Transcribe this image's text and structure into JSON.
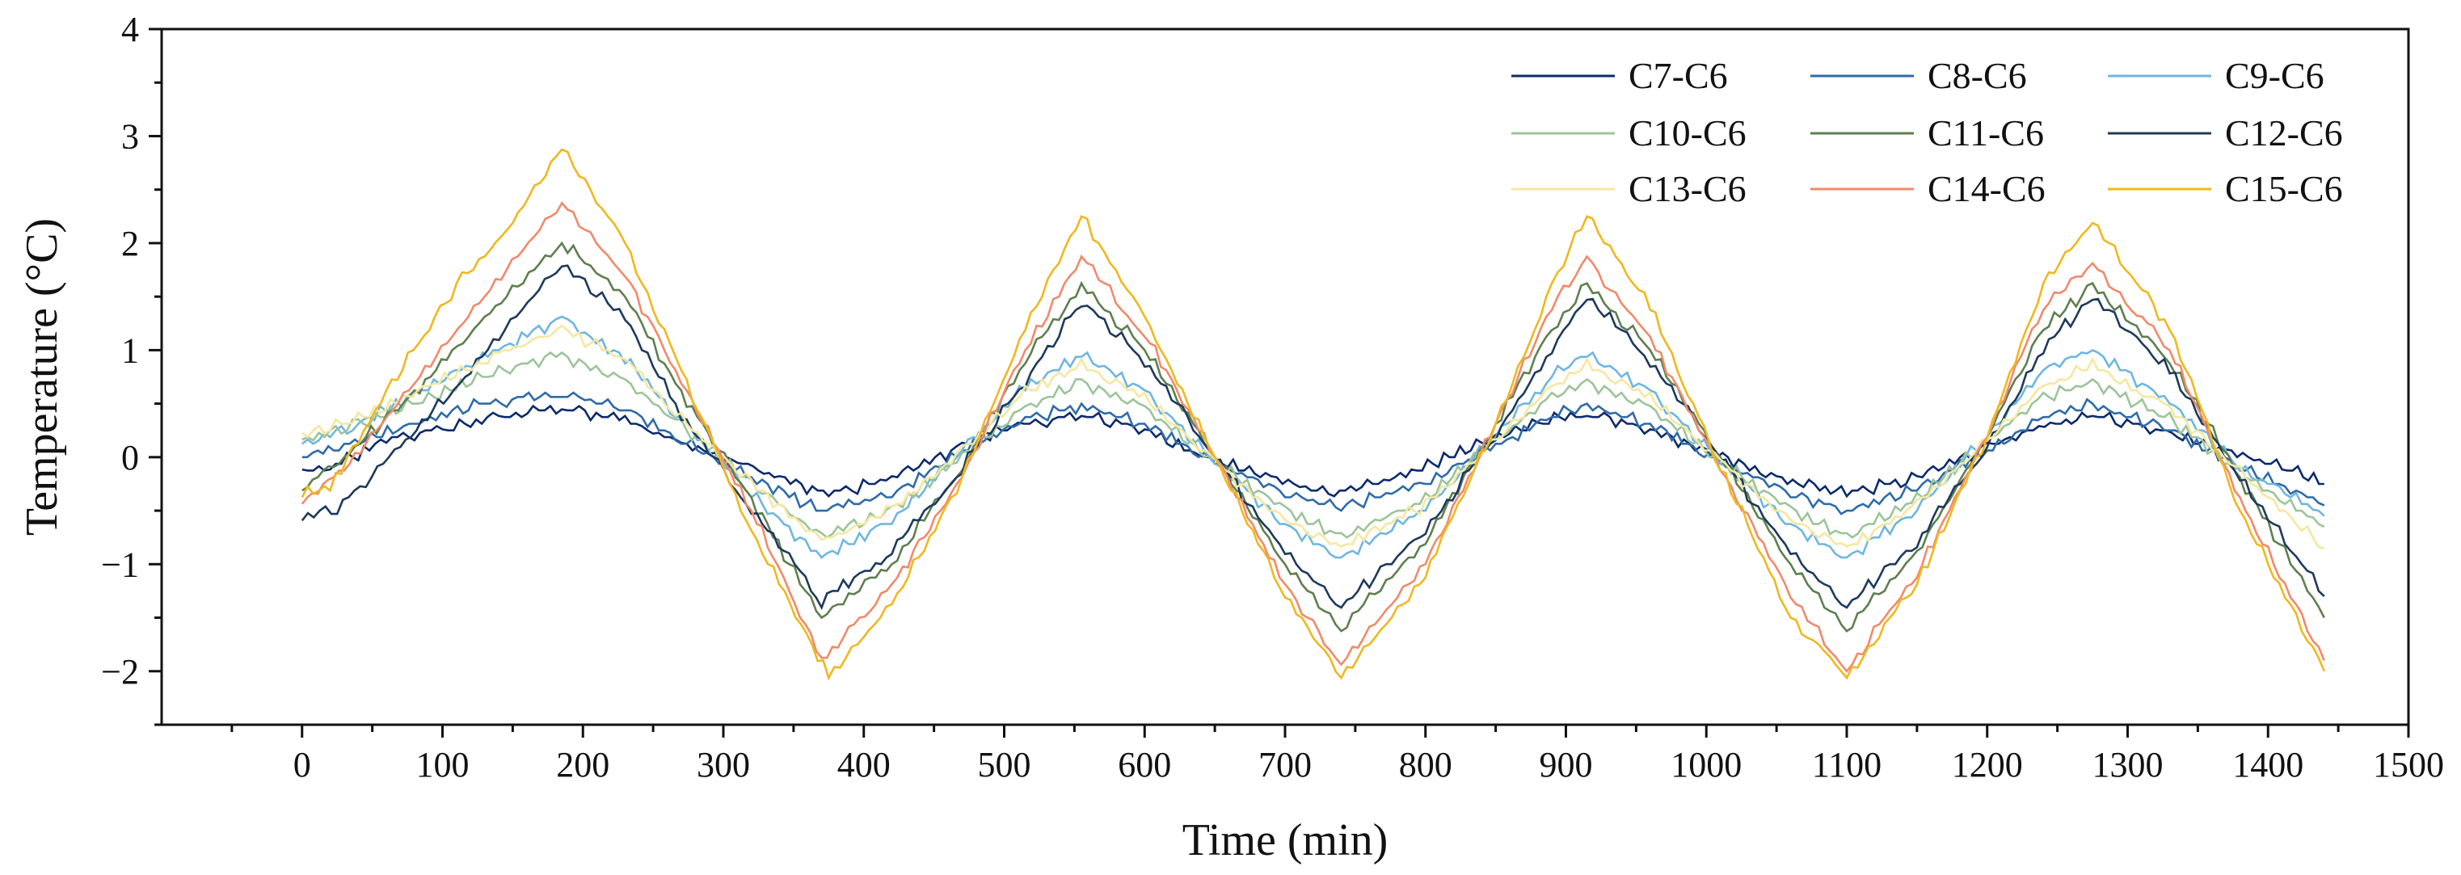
{
  "chart_data": {
    "type": "line",
    "title": "",
    "xlabel": "Time (min)",
    "ylabel": "Temperature (°C)",
    "xlim": [
      -100,
      1500
    ],
    "ylim": [
      -2.5,
      4
    ],
    "xticks": [
      0,
      100,
      200,
      300,
      400,
      500,
      600,
      700,
      800,
      900,
      1000,
      1100,
      1200,
      1300,
      1400,
      1500
    ],
    "yticks": [
      -2,
      -1,
      0,
      1,
      2,
      3,
      4
    ],
    "ytick_labels": [
      "−2",
      "−1",
      "0",
      "1",
      "2",
      "3",
      "4"
    ],
    "grid": false,
    "legend_position": "top-right",
    "series": [
      {
        "name": "C7-C6",
        "color": "#0c2a6b",
        "points": [
          [
            0,
            -0.15
          ],
          [
            20,
            -0.1
          ],
          [
            60,
            0.15
          ],
          [
            100,
            0.25
          ],
          [
            140,
            0.38
          ],
          [
            185,
            0.45
          ],
          [
            230,
            0.35
          ],
          [
            270,
            0.12
          ],
          [
            310,
            -0.05
          ],
          [
            340,
            -0.2
          ],
          [
            375,
            -0.35
          ],
          [
            420,
            -0.2
          ],
          [
            470,
            0.1
          ],
          [
            510,
            0.3
          ],
          [
            555,
            0.38
          ],
          [
            600,
            0.25
          ],
          [
            640,
            0.0
          ],
          [
            690,
            -0.2
          ],
          [
            735,
            -0.35
          ],
          [
            790,
            -0.15
          ],
          [
            840,
            0.12
          ],
          [
            880,
            0.32
          ],
          [
            915,
            0.4
          ],
          [
            960,
            0.25
          ],
          [
            1000,
            0.05
          ],
          [
            1050,
            -0.2
          ],
          [
            1100,
            -0.35
          ],
          [
            1150,
            -0.2
          ],
          [
            1200,
            0.1
          ],
          [
            1245,
            0.3
          ],
          [
            1275,
            0.38
          ],
          [
            1320,
            0.25
          ],
          [
            1370,
            0.05
          ],
          [
            1410,
            -0.1
          ],
          [
            1440,
            -0.25
          ]
        ]
      },
      {
        "name": "C8-C6",
        "color": "#2f6ba8",
        "points": [
          [
            0,
            0.0
          ],
          [
            30,
            0.1
          ],
          [
            80,
            0.3
          ],
          [
            130,
            0.5
          ],
          [
            185,
            0.58
          ],
          [
            230,
            0.45
          ],
          [
            270,
            0.15
          ],
          [
            320,
            -0.2
          ],
          [
            370,
            -0.5
          ],
          [
            420,
            -0.35
          ],
          [
            470,
            0.05
          ],
          [
            515,
            0.35
          ],
          [
            555,
            0.48
          ],
          [
            600,
            0.3
          ],
          [
            650,
            -0.05
          ],
          [
            700,
            -0.35
          ],
          [
            740,
            -0.48
          ],
          [
            800,
            -0.25
          ],
          [
            850,
            0.1
          ],
          [
            890,
            0.38
          ],
          [
            915,
            0.48
          ],
          [
            960,
            0.3
          ],
          [
            1010,
            -0.05
          ],
          [
            1060,
            -0.35
          ],
          [
            1100,
            -0.5
          ],
          [
            1150,
            -0.3
          ],
          [
            1200,
            0.05
          ],
          [
            1240,
            0.38
          ],
          [
            1275,
            0.48
          ],
          [
            1330,
            0.25
          ],
          [
            1380,
            -0.1
          ],
          [
            1440,
            -0.45
          ]
        ]
      },
      {
        "name": "C9-C6",
        "color": "#6fb6e0",
        "points": [
          [
            0,
            0.1
          ],
          [
            40,
            0.3
          ],
          [
            90,
            0.65
          ],
          [
            140,
            1.0
          ],
          [
            185,
            1.3
          ],
          [
            230,
            0.9
          ],
          [
            270,
            0.35
          ],
          [
            320,
            -0.35
          ],
          [
            370,
            -0.95
          ],
          [
            420,
            -0.6
          ],
          [
            470,
            0.05
          ],
          [
            515,
            0.65
          ],
          [
            555,
            0.95
          ],
          [
            600,
            0.6
          ],
          [
            650,
            -0.05
          ],
          [
            700,
            -0.65
          ],
          [
            740,
            -0.95
          ],
          [
            800,
            -0.5
          ],
          [
            850,
            0.2
          ],
          [
            890,
            0.75
          ],
          [
            915,
            0.95
          ],
          [
            960,
            0.6
          ],
          [
            1010,
            -0.05
          ],
          [
            1060,
            -0.65
          ],
          [
            1100,
            -0.95
          ],
          [
            1150,
            -0.5
          ],
          [
            1200,
            0.2
          ],
          [
            1240,
            0.8
          ],
          [
            1275,
            1.0
          ],
          [
            1330,
            0.5
          ],
          [
            1380,
            -0.1
          ],
          [
            1440,
            -0.55
          ]
        ]
      },
      {
        "name": "C10-C6",
        "color": "#9cc49a",
        "points": [
          [
            0,
            0.15
          ],
          [
            40,
            0.3
          ],
          [
            90,
            0.55
          ],
          [
            140,
            0.8
          ],
          [
            185,
            0.95
          ],
          [
            230,
            0.7
          ],
          [
            270,
            0.3
          ],
          [
            320,
            -0.25
          ],
          [
            370,
            -0.75
          ],
          [
            420,
            -0.5
          ],
          [
            470,
            0.0
          ],
          [
            515,
            0.45
          ],
          [
            555,
            0.7
          ],
          [
            600,
            0.45
          ],
          [
            650,
            -0.05
          ],
          [
            700,
            -0.5
          ],
          [
            740,
            -0.75
          ],
          [
            800,
            -0.4
          ],
          [
            850,
            0.15
          ],
          [
            890,
            0.55
          ],
          [
            915,
            0.7
          ],
          [
            960,
            0.45
          ],
          [
            1010,
            -0.05
          ],
          [
            1060,
            -0.5
          ],
          [
            1100,
            -0.75
          ],
          [
            1150,
            -0.4
          ],
          [
            1200,
            0.15
          ],
          [
            1240,
            0.55
          ],
          [
            1275,
            0.7
          ],
          [
            1330,
            0.35
          ],
          [
            1380,
            -0.15
          ],
          [
            1440,
            -0.65
          ]
        ]
      },
      {
        "name": "C11-C6",
        "color": "#5e7f4f",
        "points": [
          [
            0,
            -0.3
          ],
          [
            30,
            0.0
          ],
          [
            80,
            0.6
          ],
          [
            130,
            1.3
          ],
          [
            185,
            2.0
          ],
          [
            230,
            1.5
          ],
          [
            270,
            0.6
          ],
          [
            320,
            -0.4
          ],
          [
            370,
            -1.5
          ],
          [
            420,
            -1.0
          ],
          [
            470,
            -0.1
          ],
          [
            515,
            0.9
          ],
          [
            555,
            1.6
          ],
          [
            600,
            1.0
          ],
          [
            650,
            0.0
          ],
          [
            700,
            -1.0
          ],
          [
            740,
            -1.6
          ],
          [
            800,
            -0.8
          ],
          [
            850,
            0.3
          ],
          [
            890,
            1.2
          ],
          [
            915,
            1.6
          ],
          [
            960,
            1.0
          ],
          [
            1010,
            0.0
          ],
          [
            1060,
            -1.0
          ],
          [
            1100,
            -1.6
          ],
          [
            1150,
            -0.9
          ],
          [
            1200,
            0.2
          ],
          [
            1240,
            1.2
          ],
          [
            1275,
            1.6
          ],
          [
            1330,
            0.9
          ],
          [
            1380,
            -0.2
          ],
          [
            1440,
            -1.5
          ]
        ]
      },
      {
        "name": "C12-C6",
        "color": "#1d3a5c",
        "points": [
          [
            0,
            -0.55
          ],
          [
            25,
            -0.5
          ],
          [
            70,
            0.1
          ],
          [
            120,
            0.8
          ],
          [
            185,
            1.8
          ],
          [
            230,
            1.3
          ],
          [
            270,
            0.4
          ],
          [
            320,
            -0.5
          ],
          [
            370,
            -1.35
          ],
          [
            420,
            -0.9
          ],
          [
            470,
            -0.1
          ],
          [
            515,
            0.7
          ],
          [
            555,
            1.45
          ],
          [
            600,
            0.9
          ],
          [
            650,
            0.0
          ],
          [
            700,
            -0.9
          ],
          [
            740,
            -1.4
          ],
          [
            800,
            -0.7
          ],
          [
            850,
            0.2
          ],
          [
            890,
            1.0
          ],
          [
            915,
            1.5
          ],
          [
            960,
            0.9
          ],
          [
            1010,
            0.0
          ],
          [
            1060,
            -0.9
          ],
          [
            1100,
            -1.4
          ],
          [
            1150,
            -0.8
          ],
          [
            1200,
            0.1
          ],
          [
            1240,
            1.0
          ],
          [
            1275,
            1.5
          ],
          [
            1330,
            0.8
          ],
          [
            1380,
            -0.2
          ],
          [
            1440,
            -1.3
          ]
        ]
      },
      {
        "name": "C13-C6",
        "color": "#f6e7a0",
        "points": [
          [
            0,
            0.2
          ],
          [
            40,
            0.35
          ],
          [
            90,
            0.65
          ],
          [
            140,
            0.95
          ],
          [
            185,
            1.2
          ],
          [
            230,
            0.9
          ],
          [
            270,
            0.35
          ],
          [
            320,
            -0.25
          ],
          [
            370,
            -0.8
          ],
          [
            420,
            -0.5
          ],
          [
            470,
            0.05
          ],
          [
            515,
            0.6
          ],
          [
            555,
            0.85
          ],
          [
            600,
            0.55
          ],
          [
            650,
            -0.05
          ],
          [
            700,
            -0.6
          ],
          [
            740,
            -0.85
          ],
          [
            800,
            -0.45
          ],
          [
            850,
            0.15
          ],
          [
            890,
            0.65
          ],
          [
            915,
            0.85
          ],
          [
            960,
            0.55
          ],
          [
            1010,
            -0.05
          ],
          [
            1060,
            -0.6
          ],
          [
            1100,
            -0.85
          ],
          [
            1150,
            -0.45
          ],
          [
            1200,
            0.15
          ],
          [
            1240,
            0.65
          ],
          [
            1275,
            0.85
          ],
          [
            1330,
            0.45
          ],
          [
            1380,
            -0.15
          ],
          [
            1440,
            -0.85
          ]
        ]
      },
      {
        "name": "C14-C6",
        "color": "#f08a6c",
        "points": [
          [
            0,
            -0.45
          ],
          [
            30,
            -0.1
          ],
          [
            80,
            0.7
          ],
          [
            130,
            1.5
          ],
          [
            185,
            2.35
          ],
          [
            230,
            1.7
          ],
          [
            270,
            0.7
          ],
          [
            320,
            -0.5
          ],
          [
            370,
            -1.9
          ],
          [
            420,
            -1.2
          ],
          [
            470,
            -0.2
          ],
          [
            515,
            1.0
          ],
          [
            555,
            1.85
          ],
          [
            600,
            1.15
          ],
          [
            650,
            0.0
          ],
          [
            700,
            -1.2
          ],
          [
            740,
            -1.95
          ],
          [
            800,
            -1.0
          ],
          [
            850,
            0.3
          ],
          [
            890,
            1.4
          ],
          [
            915,
            1.85
          ],
          [
            960,
            1.1
          ],
          [
            1010,
            -0.1
          ],
          [
            1060,
            -1.3
          ],
          [
            1100,
            -2.0
          ],
          [
            1150,
            -1.1
          ],
          [
            1200,
            0.2
          ],
          [
            1240,
            1.4
          ],
          [
            1275,
            1.8
          ],
          [
            1330,
            1.0
          ],
          [
            1380,
            -0.4
          ],
          [
            1440,
            -1.9
          ]
        ]
      },
      {
        "name": "C15-C6",
        "color": "#efb81e",
        "points": [
          [
            0,
            -0.35
          ],
          [
            20,
            -0.3
          ],
          [
            60,
            0.6
          ],
          [
            110,
            1.6
          ],
          [
            150,
            2.2
          ],
          [
            185,
            2.88
          ],
          [
            230,
            2.0
          ],
          [
            270,
            0.8
          ],
          [
            320,
            -0.7
          ],
          [
            375,
            -2.05
          ],
          [
            420,
            -1.4
          ],
          [
            470,
            -0.2
          ],
          [
            515,
            1.2
          ],
          [
            555,
            2.25
          ],
          [
            600,
            1.3
          ],
          [
            650,
            0.0
          ],
          [
            700,
            -1.3
          ],
          [
            740,
            -2.05
          ],
          [
            800,
            -1.1
          ],
          [
            850,
            0.3
          ],
          [
            890,
            1.6
          ],
          [
            915,
            2.25
          ],
          [
            960,
            1.4
          ],
          [
            1010,
            -0.1
          ],
          [
            1060,
            -1.5
          ],
          [
            1100,
            -2.05
          ],
          [
            1150,
            -1.2
          ],
          [
            1200,
            0.2
          ],
          [
            1240,
            1.6
          ],
          [
            1275,
            2.2
          ],
          [
            1330,
            1.2
          ],
          [
            1380,
            -0.5
          ],
          [
            1440,
            -2.0
          ]
        ]
      }
    ]
  }
}
